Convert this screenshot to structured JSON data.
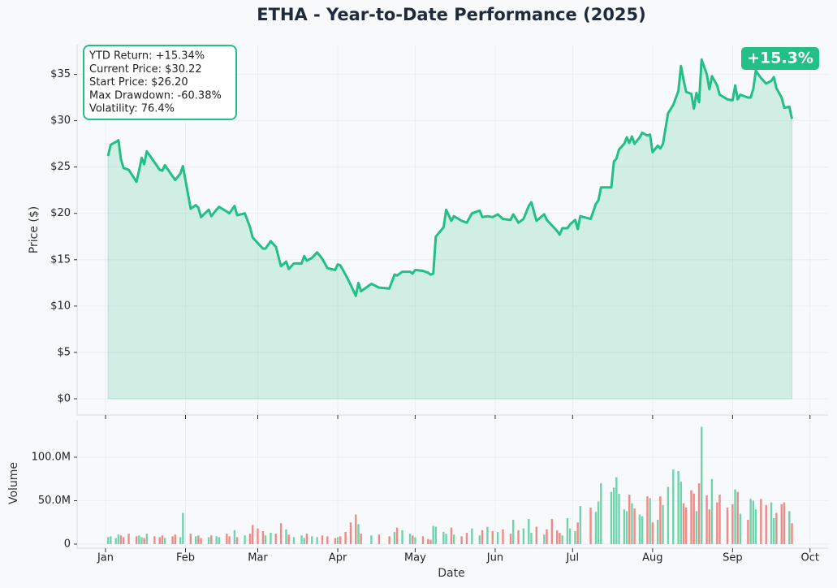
{
  "chart_data": [
    {
      "type": "line",
      "title": "ETHA - Year-to-Date Performance (2025)",
      "ylabel": "Price ($)",
      "x": [
        1,
        2,
        4,
        5,
        6,
        7,
        9,
        12,
        13,
        14,
        15,
        16,
        19,
        21,
        22,
        23,
        26,
        27,
        29,
        30,
        33,
        35,
        36,
        37,
        40,
        41,
        43,
        44,
        47,
        48,
        50,
        51,
        54,
        56,
        57,
        59,
        61,
        62,
        64,
        66,
        68,
        70,
        71,
        73,
        76,
        77,
        78,
        80,
        82,
        84,
        86,
        89,
        90,
        91,
        93,
        95,
        97,
        98,
        99,
        103,
        106,
        110,
        112,
        113,
        115,
        118,
        119,
        120,
        123,
        125,
        126,
        127,
        128,
        131,
        132,
        134,
        135,
        138,
        140,
        142,
        145,
        146,
        148,
        150,
        152,
        154,
        157,
        158,
        160,
        162,
        164,
        165,
        167,
        170,
        171,
        173,
        175,
        176,
        177,
        179,
        180,
        182,
        183,
        184,
        188,
        190,
        191,
        192,
        196,
        197,
        198,
        199,
        201,
        202,
        203,
        204,
        205,
        207,
        208,
        210,
        211,
        212,
        214,
        215,
        216,
        218,
        220,
        222,
        223,
        224,
        225,
        227,
        228,
        229,
        230,
        231,
        233,
        234,
        235,
        237,
        238,
        241,
        243,
        244,
        245,
        246,
        249,
        250,
        251,
        252,
        254,
        256,
        258,
        259,
        260,
        262,
        263,
        265,
        266
      ],
      "series": [
        {
          "color": "#22bf87",
          "values": [
            26.2,
            27.4,
            27.7,
            27.9,
            25.8,
            24.9,
            24.7,
            23.4,
            24.6,
            26.0,
            25.3,
            26.7,
            25.5,
            24.7,
            24.6,
            25.2,
            24.0,
            23.6,
            24.3,
            25.1,
            20.5,
            20.9,
            20.6,
            19.6,
            20.4,
            19.7,
            20.4,
            20.7,
            20.2,
            20.0,
            20.8,
            19.8,
            20.0,
            18.5,
            17.4,
            16.8,
            16.2,
            16.2,
            17.0,
            16.4,
            14.3,
            14.8,
            14.0,
            14.6,
            14.6,
            15.4,
            14.9,
            15.2,
            15.8,
            15.1,
            14.1,
            13.9,
            14.5,
            14.4,
            13.4,
            12.3,
            11.1,
            12.5,
            11.6,
            12.4,
            12.0,
            11.9,
            13.4,
            13.3,
            13.7,
            13.7,
            13.5,
            13.9,
            13.8,
            13.6,
            13.4,
            13.5,
            17.5,
            18.5,
            20.4,
            19.2,
            19.7,
            19.2,
            19.0,
            20.0,
            20.3,
            19.6,
            19.7,
            19.6,
            19.9,
            19.4,
            19.3,
            19.9,
            19.0,
            19.4,
            20.8,
            21.2,
            19.2,
            19.9,
            19.3,
            18.7,
            18.1,
            17.7,
            18.4,
            18.4,
            18.8,
            19.3,
            18.3,
            19.7,
            19.4,
            21.0,
            21.4,
            22.8,
            22.8,
            25.6,
            25.9,
            26.9,
            27.5,
            28.2,
            27.6,
            28.3,
            27.5,
            28.2,
            28.7,
            28.4,
            28.5,
            26.6,
            27.3,
            27.0,
            27.5,
            30.8,
            31.7,
            33.2,
            35.9,
            34.4,
            33.1,
            32.9,
            31.3,
            33.0,
            32.0,
            36.6,
            35.0,
            33.4,
            34.8,
            33.8,
            32.8,
            32.3,
            32.2,
            33.8,
            32.3,
            32.8,
            32.5,
            32.5,
            33.4,
            35.4,
            34.6,
            34.0,
            34.3,
            34.7,
            33.5,
            32.5,
            31.4,
            31.5,
            30.2
          ]
        }
      ],
      "xlim": [
        -11,
        280
      ],
      "ylim": [
        -1.75,
        38.2
      ],
      "yticks": [
        {
          "value": 0,
          "label": "$0"
        },
        {
          "value": 5,
          "label": "$5"
        },
        {
          "value": 10,
          "label": "$10"
        },
        {
          "value": 15,
          "label": "$15"
        },
        {
          "value": 20,
          "label": "$20"
        },
        {
          "value": 25,
          "label": "$25"
        },
        {
          "value": 30,
          "label": "$30"
        },
        {
          "value": 35,
          "label": "$35"
        }
      ],
      "grid": true,
      "annotations": [
        "YTD Return: +15.34%",
        "Current Price: $30.22",
        "Start Price: $26.20",
        "Max Drawdown: -60.38%",
        "Volatility: 76.4%"
      ],
      "badge": "+15.3%"
    },
    {
      "type": "bar",
      "ylabel": "Volume",
      "xlabel": "Date",
      "colors": {
        "up": "#6fd3ac",
        "down": "#ef8a86"
      },
      "x": [
        1,
        2,
        4,
        5,
        6,
        7,
        9,
        12,
        13,
        14,
        15,
        16,
        19,
        21,
        22,
        23,
        26,
        27,
        29,
        30,
        33,
        35,
        36,
        37,
        40,
        41,
        43,
        44,
        47,
        48,
        50,
        51,
        54,
        56,
        57,
        59,
        61,
        62,
        64,
        66,
        68,
        70,
        71,
        73,
        76,
        77,
        78,
        80,
        82,
        84,
        86,
        89,
        90,
        91,
        93,
        95,
        97,
        98,
        99,
        103,
        106,
        110,
        112,
        113,
        115,
        118,
        119,
        120,
        123,
        125,
        126,
        127,
        128,
        131,
        132,
        134,
        135,
        138,
        140,
        142,
        145,
        146,
        148,
        150,
        152,
        154,
        157,
        158,
        160,
        162,
        164,
        165,
        167,
        170,
        171,
        173,
        175,
        176,
        177,
        179,
        180,
        182,
        183,
        184,
        188,
        190,
        191,
        192,
        196,
        197,
        198,
        199,
        201,
        202,
        203,
        204,
        205,
        207,
        208,
        210,
        211,
        212,
        214,
        215,
        216,
        218,
        220,
        222,
        223,
        224,
        225,
        227,
        228,
        229,
        230,
        231,
        233,
        234,
        235,
        237,
        238,
        241,
        243,
        244,
        245,
        246,
        249,
        250,
        251,
        252,
        254,
        256,
        258,
        259,
        260,
        262,
        263,
        265,
        266
      ],
      "values": [
        8000000.0,
        9000000.0,
        7000000.0,
        11000000.0,
        10000000.0,
        8000000.0,
        12000000.0,
        9000000.0,
        10000000.0,
        8000000.0,
        7000000.0,
        12000000.0,
        9000000.0,
        8000000.0,
        10000000.0,
        7000000.0,
        9000000.0,
        11000000.0,
        8000000.0,
        36000000.0,
        12000000.0,
        9000000.0,
        10000000.0,
        7000000.0,
        8000000.0,
        10000000.0,
        9000000.0,
        8000000.0,
        12000000.0,
        9000000.0,
        16000000.0,
        8000000.0,
        10000000.0,
        12000000.0,
        22000000.0,
        18000000.0,
        15000000.0,
        10000000.0,
        13000000.0,
        12000000.0,
        24000000.0,
        17000000.0,
        11000000.0,
        8000000.0,
        10000000.0,
        7000000.0,
        12000000.0,
        9000000.0,
        8000000.0,
        10000000.0,
        9000000.0,
        7000000.0,
        8000000.0,
        9000000.0,
        14000000.0,
        25000000.0,
        34000000.0,
        23000000.0,
        12000000.0,
        10000000.0,
        11000000.0,
        9000000.0,
        14000000.0,
        19000000.0,
        16000000.0,
        12000000.0,
        10000000.0,
        8000000.0,
        9000000.0,
        6000000.0,
        5000000.0,
        21000000.0,
        20000000.0,
        14000000.0,
        12000000.0,
        19000000.0,
        11000000.0,
        9000000.0,
        13000000.0,
        18000000.0,
        10000000.0,
        16000000.0,
        20000000.0,
        15000000.0,
        14000000.0,
        17000000.0,
        12000000.0,
        28000000.0,
        16000000.0,
        18000000.0,
        29000000.0,
        13000000.0,
        20000000.0,
        11000000.0,
        17000000.0,
        29000000.0,
        16000000.0,
        13000000.0,
        10000000.0,
        30000000.0,
        18000000.0,
        15000000.0,
        25000000.0,
        44000000.0,
        42000000.0,
        37000000.0,
        49000000.0,
        70000000.0,
        60000000.0,
        65000000.0,
        77000000.0,
        58000000.0,
        40000000.0,
        38000000.0,
        57000000.0,
        47000000.0,
        41000000.0,
        34000000.0,
        32000000.0,
        55000000.0,
        53000000.0,
        25000000.0,
        28000000.0,
        55000000.0,
        45000000.0,
        66000000.0,
        86000000.0,
        84000000.0,
        72000000.0,
        47000000.0,
        42000000.0,
        62000000.0,
        58000000.0,
        38000000.0,
        70000000.0,
        135000000.0,
        56000000.0,
        40000000.0,
        75000000.0,
        48000000.0,
        57000000.0,
        42000000.0,
        46000000.0,
        63000000.0,
        60000000.0,
        35000000.0,
        28000000.0,
        52000000.0,
        50000000.0,
        40000000.0,
        52000000.0,
        45000000.0,
        48000000.0,
        30000000.0,
        36000000.0,
        46000000.0,
        48000000.0,
        38000000.0,
        24000000.0
      ],
      "xlim": [
        -11,
        280
      ],
      "xticks": [
        {
          "value": 0,
          "label": "Jan"
        },
        {
          "value": 31,
          "label": "Feb"
        },
        {
          "value": 59,
          "label": "Mar"
        },
        {
          "value": 90,
          "label": "Apr"
        },
        {
          "value": 120,
          "label": "May"
        },
        {
          "value": 151,
          "label": "Jun"
        },
        {
          "value": 181,
          "label": "Jul"
        },
        {
          "value": 212,
          "label": "Aug"
        },
        {
          "value": 243,
          "label": "Sep"
        },
        {
          "value": 273,
          "label": "Oct"
        }
      ],
      "ylim": [
        -4700000.0,
        143000000.0
      ],
      "yticks": [
        0,
        {
          "value": 50000000,
          "label": "50.0M"
        },
        {
          "value": 100000000,
          "label": "100.0M"
        }
      ],
      "grid": true
    }
  ]
}
